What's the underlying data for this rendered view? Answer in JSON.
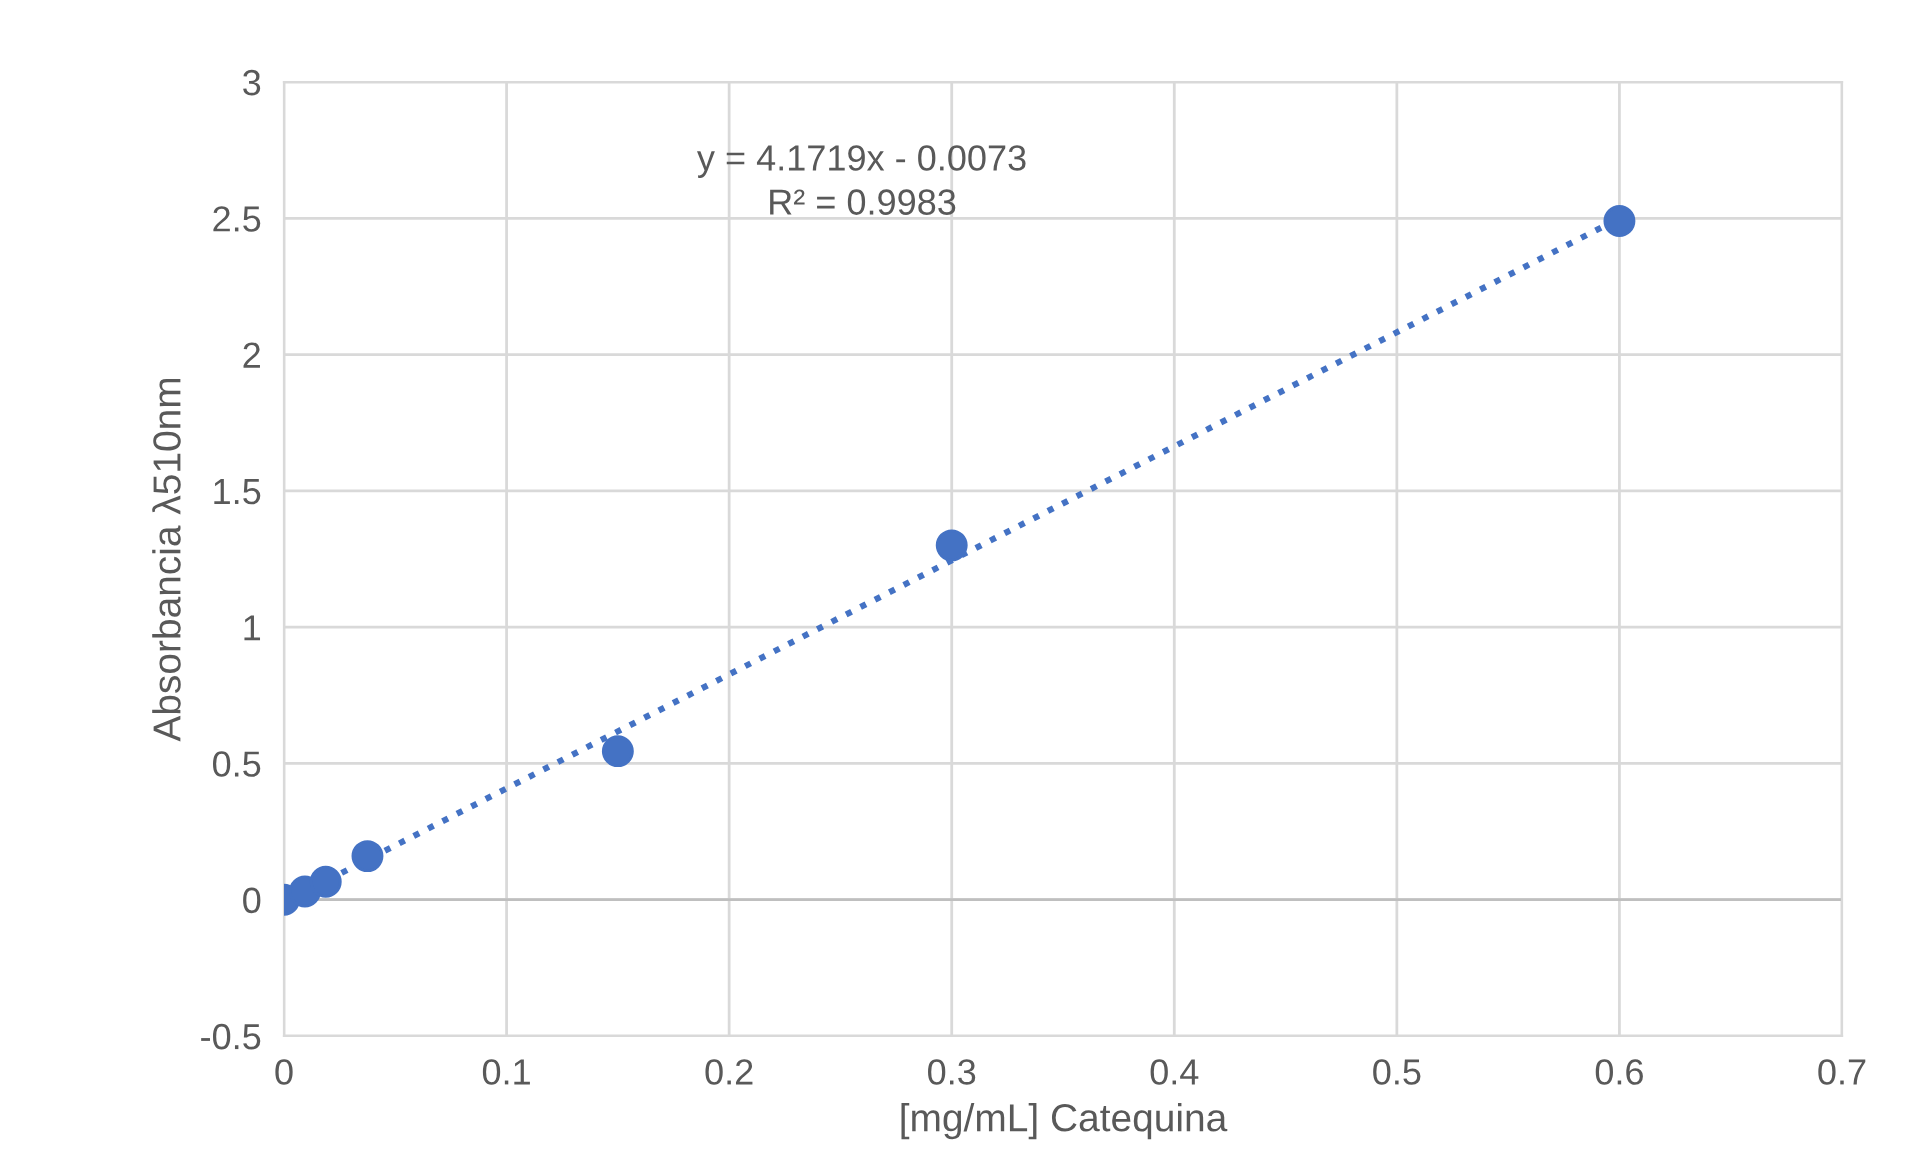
{
  "chart_data": {
    "type": "scatter",
    "xlabel": "[mg/mL] Catequina",
    "ylabel": "Absorbancia λ510nm",
    "x": [
      0,
      0.0047,
      0.0094,
      0.01875,
      0.0375,
      0.15,
      0.3,
      0.6
    ],
    "series": [
      {
        "color": "#4472c4",
        "values": [
          0,
          null,
          0.03,
          0.066,
          0.16,
          0.545,
          1.3,
          2.49
        ],
        "marker": "circle"
      },
      {
        "type": "line",
        "x": [
          0,
          0.6
        ],
        "values": [
          -0.01,
          2.5
        ],
        "color": "#4472c4",
        "line_style": "dotted",
        "marker": "none"
      }
    ],
    "annotations": [
      "y = 4.1719x - 0.0073\nR² = 0.9983"
    ],
    "xlim": [
      0,
      0.7
    ],
    "ylim": [
      -0.5,
      3
    ],
    "xticks": [
      0,
      0.1,
      0.2,
      0.3,
      0.4,
      0.5,
      0.6,
      0.7
    ],
    "yticks": [
      -0.5,
      0,
      0.5,
      1,
      1.5,
      2,
      2.5,
      3
    ],
    "grid": true
  }
}
